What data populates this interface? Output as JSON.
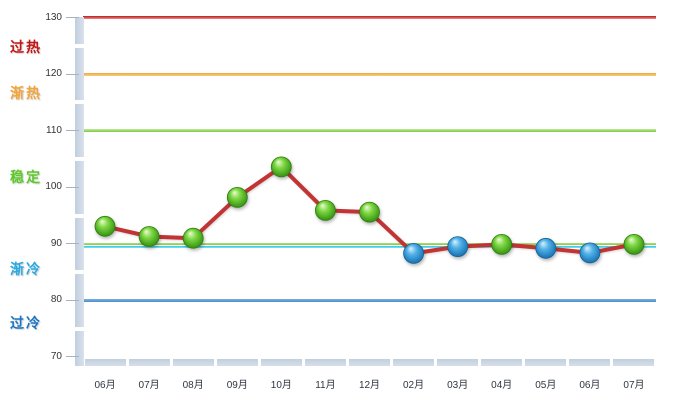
{
  "chart_data": {
    "type": "line",
    "title": "",
    "xlabel": "",
    "ylabel": "",
    "ylim": [
      70,
      130
    ],
    "legend": "none",
    "grid": "horizontal-threshold-lines-only",
    "categories": [
      "06月",
      "07月",
      "08月",
      "09月",
      "10月",
      "11月",
      "12月",
      "02月",
      "03月",
      "04月",
      "05月",
      "06月",
      "07月"
    ],
    "values": [
      93.1,
      91.3,
      91.0,
      98.2,
      103.6,
      95.9,
      95.6,
      88.3,
      89.5,
      89.9,
      89.2,
      88.4,
      89.9
    ],
    "point_colors": [
      "green",
      "green",
      "green",
      "green",
      "green",
      "green",
      "green",
      "blue",
      "blue",
      "green",
      "blue",
      "blue",
      "green"
    ],
    "y_ticks": [
      130,
      120,
      110,
      100,
      90,
      80,
      70
    ],
    "line_color": "#c23434",
    "zones": [
      {
        "id": "overheated",
        "label": "过热",
        "color": "#c41414",
        "anchor_value": 125.0
      },
      {
        "id": "warming",
        "label": "渐热",
        "color": "#f2a53c",
        "anchor_value": 116.8
      },
      {
        "id": "stable",
        "label": "稳定",
        "color": "#5dc829",
        "anchor_value": 102.0
      },
      {
        "id": "cooling",
        "label": "渐冷",
        "color": "#2aa9e0",
        "anchor_value": 85.7
      },
      {
        "id": "overcooled",
        "label": "过冷",
        "color": "#1b74c2",
        "anchor_value": 76.2
      }
    ],
    "thresholds": [
      {
        "value": 130,
        "h": 3,
        "top": "#bf1a1a",
        "bottom": "#e68f8f"
      },
      {
        "value": 120,
        "h": 3,
        "top": "#f1a83e",
        "bottom": "#f7cd85"
      },
      {
        "value": 110,
        "h": 3,
        "top": "#c3eb9f",
        "bottom": "#7cc93e"
      },
      {
        "value": 90.0,
        "h": 2,
        "top": "#aee182",
        "bottom": "#82cc44"
      },
      {
        "value": 89.45,
        "h": 2.5,
        "top": "#2fc4e7",
        "bottom": "#8ce2f4"
      },
      {
        "value": 80,
        "h": 3,
        "top": "#7db0de",
        "bottom": "#4a8ed0"
      }
    ],
    "point_palette": {
      "green": {
        "highlight": "#eefbd8",
        "mid": "#7fd844",
        "dark": "#3d9a15",
        "edge": "#2f7d10"
      },
      "blue": {
        "highlight": "#ddf2fc",
        "mid": "#54b3e8",
        "dark": "#1d79ba",
        "edge": "#166295"
      }
    },
    "axis_bar_color_light": "#d9e2ec",
    "axis_bar_color_dark": "#c0cedd"
  }
}
